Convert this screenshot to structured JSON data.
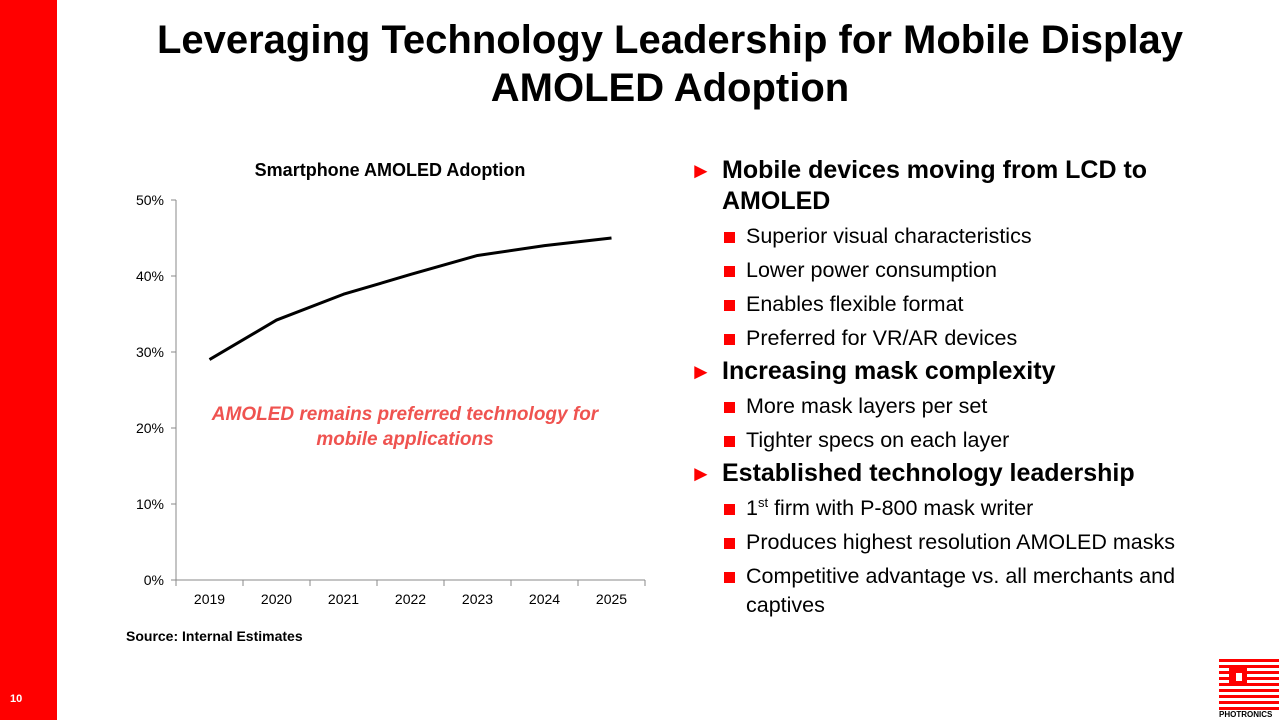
{
  "page_number": "10",
  "title": "Leveraging Technology Leadership for Mobile Display AMOLED Adoption",
  "chart_annotation": "AMOLED remains preferred technology for mobile applications",
  "source": "Source: Internal Estimates",
  "bullets": {
    "b1": {
      "heading": "Mobile devices moving from LCD to AMOLED",
      "items": [
        "Superior visual characteristics",
        "Lower power consumption",
        "Enables flexible format",
        "Preferred for VR/AR devices"
      ]
    },
    "b2": {
      "heading": "Increasing mask complexity",
      "items": [
        "More mask layers per set",
        "Tighter specs on each layer"
      ]
    },
    "b3": {
      "heading": "Established technology leadership",
      "first_prefix": "1",
      "first_sup": "st",
      "first_rest": " firm with P-800 mask writer",
      "items": [
        "Produces highest resolution AMOLED masks",
        "Competitive advantage vs. all merchants and captives"
      ]
    }
  },
  "logo_text": "PHOTRONICS",
  "colors": {
    "accent": "#ff0000",
    "annotation": "#ef5350"
  },
  "chart_data": {
    "type": "line",
    "title": "Smartphone AMOLED Adoption",
    "categories": [
      "2019",
      "2020",
      "2021",
      "2022",
      "2023",
      "2024",
      "2025"
    ],
    "series": [
      {
        "values": [
          29,
          34.2,
          37.6,
          40.2,
          42.7,
          44,
          45
        ]
      }
    ],
    "yticks": [
      "0%",
      "10%",
      "20%",
      "30%",
      "40%",
      "50%"
    ],
    "ylim": [
      0,
      50
    ],
    "grid": false,
    "legend": "none"
  }
}
